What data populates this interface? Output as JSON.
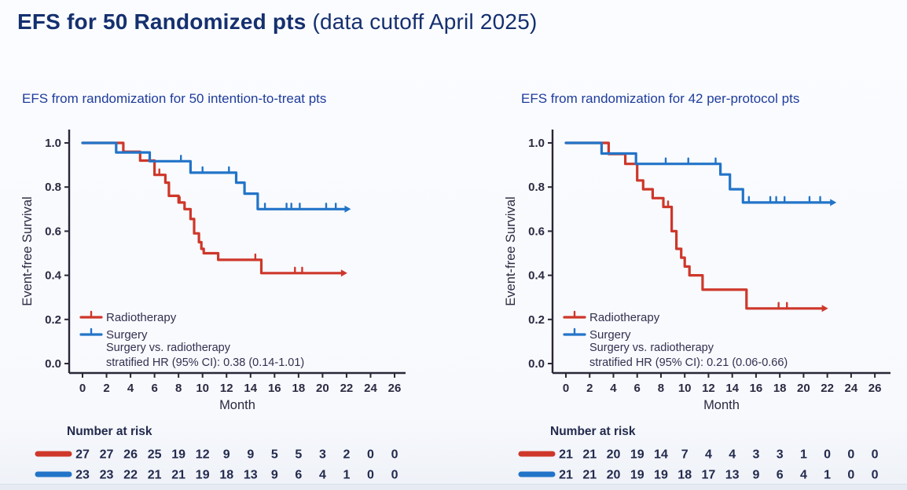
{
  "slide": {
    "title": {
      "bold": "EFS for 50 Randomized pts",
      "regular": " (data cutoff April 2025)"
    }
  },
  "colors": {
    "radiotherapy": "#ce372a",
    "surgery": "#2274c8",
    "title_navy": "#15306f",
    "subtitle_blue": "#1e3c9c",
    "axis": "#2a2637"
  },
  "chart_data": [
    {
      "type": "line",
      "subtype": "kaplan-meier-step",
      "title": "EFS from randomization for 50 intention-to-treat pts",
      "xlabel": "Month",
      "ylabel": "Event-free Survival",
      "xlim": [
        0,
        26
      ],
      "ylim": [
        0.0,
        1.0
      ],
      "xticks": [
        0,
        2,
        4,
        6,
        8,
        10,
        12,
        14,
        16,
        18,
        20,
        22,
        24,
        26
      ],
      "yticks": [
        0.0,
        0.2,
        0.4,
        0.6,
        0.8,
        1.0
      ],
      "grid": false,
      "legend_position": "inside-lower-left",
      "annotation": [
        "Surgery vs. radiotherapy",
        "stratified HR (95% CI): 0.38 (0.14-1.01)"
      ],
      "series": [
        {
          "name": "Radiotherapy",
          "color": "#ce372a",
          "steps": [
            [
              0,
              1.0
            ],
            [
              3.4,
              0.96
            ],
            [
              4.8,
              0.92
            ],
            [
              6.0,
              0.855
            ],
            [
              6.9,
              0.82
            ],
            [
              7.2,
              0.76
            ],
            [
              8.0,
              0.73
            ],
            [
              8.5,
              0.7
            ],
            [
              9.0,
              0.655
            ],
            [
              9.3,
              0.59
            ],
            [
              9.7,
              0.55
            ],
            [
              9.9,
              0.52
            ],
            [
              10.1,
              0.5
            ],
            [
              11.3,
              0.47
            ],
            [
              14.9,
              0.41
            ]
          ],
          "censor_marks": [
            [
              6.4,
              0.855
            ],
            [
              8.1,
              0.73
            ],
            [
              14.4,
              0.47
            ],
            [
              17.7,
              0.41
            ],
            [
              18.3,
              0.41
            ]
          ],
          "end_month": 21.8
        },
        {
          "name": "Surgery",
          "color": "#2274c8",
          "steps": [
            [
              0,
              1.0
            ],
            [
              2.8,
              0.957
            ],
            [
              5.6,
              0.917
            ],
            [
              9.0,
              0.865
            ],
            [
              12.8,
              0.82
            ],
            [
              13.5,
              0.77
            ],
            [
              14.6,
              0.7
            ]
          ],
          "censor_marks": [
            [
              8.2,
              0.917
            ],
            [
              10.0,
              0.865
            ],
            [
              12.2,
              0.865
            ],
            [
              15.2,
              0.7
            ],
            [
              17.0,
              0.7
            ],
            [
              17.4,
              0.7
            ],
            [
              18.1,
              0.7
            ],
            [
              20.3,
              0.7
            ],
            [
              21.1,
              0.7
            ]
          ],
          "end_month": 22.1
        }
      ],
      "number_at_risk": {
        "header": "Number at risk",
        "times": [
          0,
          2,
          4,
          6,
          8,
          10,
          12,
          14,
          16,
          18,
          20,
          22,
          24,
          26
        ],
        "rows": [
          {
            "name": "Radiotherapy",
            "color": "#ce372a",
            "values": [
              27,
              27,
              26,
              25,
              19,
              12,
              9,
              9,
              5,
              5,
              3,
              2,
              0,
              0
            ]
          },
          {
            "name": "Surgery",
            "color": "#2274c8",
            "values": [
              23,
              23,
              22,
              21,
              21,
              19,
              18,
              13,
              9,
              6,
              4,
              1,
              0,
              0
            ]
          }
        ]
      }
    },
    {
      "type": "line",
      "subtype": "kaplan-meier-step",
      "title": "EFS from randomization for 42 per-protocol pts",
      "xlabel": "Month",
      "ylabel": "Event-free Survival",
      "xlim": [
        0,
        26
      ],
      "ylim": [
        0.0,
        1.0
      ],
      "xticks": [
        0,
        2,
        4,
        6,
        8,
        10,
        12,
        14,
        16,
        18,
        20,
        22,
        24,
        26
      ],
      "yticks": [
        0.0,
        0.2,
        0.4,
        0.6,
        0.8,
        1.0
      ],
      "grid": false,
      "legend_position": "inside-lower-left",
      "annotation": [
        "Surgery vs. radiotherapy",
        "stratified HR (95% CI): 0.21 (0.06-0.66)"
      ],
      "series": [
        {
          "name": "Radiotherapy",
          "color": "#ce372a",
          "steps": [
            [
              0,
              1.0
            ],
            [
              3.6,
              0.95
            ],
            [
              5.0,
              0.905
            ],
            [
              6.0,
              0.83
            ],
            [
              6.5,
              0.79
            ],
            [
              7.3,
              0.75
            ],
            [
              8.2,
              0.71
            ],
            [
              8.9,
              0.6
            ],
            [
              9.3,
              0.52
            ],
            [
              9.7,
              0.48
            ],
            [
              10.0,
              0.44
            ],
            [
              10.4,
              0.4
            ],
            [
              11.5,
              0.335
            ],
            [
              15.2,
              0.25
            ]
          ],
          "censor_marks": [
            [
              8.6,
              0.71
            ],
            [
              17.9,
              0.25
            ],
            [
              18.6,
              0.25
            ]
          ],
          "end_month": 21.8
        },
        {
          "name": "Surgery",
          "color": "#2274c8",
          "steps": [
            [
              0,
              1.0
            ],
            [
              3.0,
              0.952
            ],
            [
              5.9,
              0.905
            ],
            [
              13.0,
              0.857
            ],
            [
              13.8,
              0.79
            ],
            [
              14.9,
              0.73
            ]
          ],
          "censor_marks": [
            [
              8.4,
              0.905
            ],
            [
              10.3,
              0.905
            ],
            [
              12.6,
              0.905
            ],
            [
              15.4,
              0.73
            ],
            [
              17.2,
              0.73
            ],
            [
              17.7,
              0.73
            ],
            [
              18.4,
              0.73
            ],
            [
              20.5,
              0.73
            ],
            [
              21.4,
              0.73
            ]
          ],
          "end_month": 22.5
        }
      ],
      "number_at_risk": {
        "header": "Number at risk",
        "times": [
          0,
          2,
          4,
          6,
          8,
          10,
          12,
          14,
          16,
          18,
          20,
          22,
          24,
          26
        ],
        "rows": [
          {
            "name": "Radiotherapy",
            "color": "#ce372a",
            "values": [
              21,
              21,
              20,
              19,
              14,
              7,
              4,
              4,
              3,
              3,
              1,
              0,
              0,
              0
            ]
          },
          {
            "name": "Surgery",
            "color": "#2274c8",
            "values": [
              21,
              21,
              20,
              19,
              19,
              18,
              17,
              13,
              9,
              6,
              4,
              1,
              0,
              0
            ]
          }
        ]
      }
    }
  ]
}
